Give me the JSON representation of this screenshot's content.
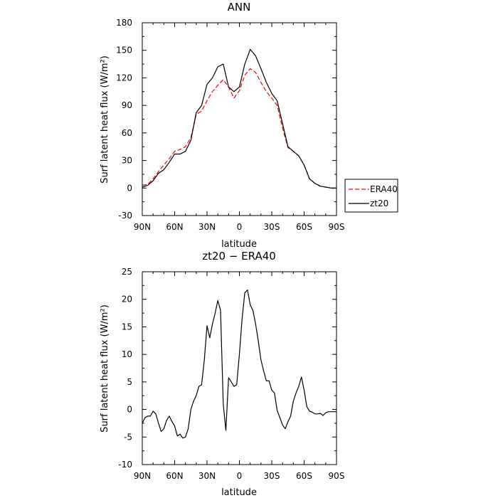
{
  "chart_data": [
    {
      "type": "line",
      "title": "ANN",
      "xlabel": "latitude",
      "ylabel": "Surf latent heat flux (W/m²)",
      "xlim": [
        90,
        -90
      ],
      "ylim": [
        -30,
        180
      ],
      "xticks": [
        90,
        60,
        30,
        0,
        -30,
        -60,
        -90
      ],
      "xtick_labels": [
        "90N",
        "60N",
        "30N",
        "0",
        "30S",
        "60S",
        "90S"
      ],
      "yticks": [
        -30,
        0,
        30,
        60,
        90,
        120,
        150,
        180
      ],
      "ytick_labels": [
        "-30",
        "0",
        "30",
        "60",
        "90",
        "120",
        "150",
        "180"
      ],
      "grid": false,
      "legend_position": "outside-right",
      "series": [
        {
          "name": "ERA40",
          "color": "#ff0000",
          "dash": "dashed",
          "x": [
            90,
            85,
            80,
            75,
            70,
            65,
            60,
            55,
            50,
            45,
            40,
            35,
            30,
            25,
            20,
            15,
            10,
            5,
            0,
            -5,
            -10,
            -15,
            -20,
            -25,
            -30,
            -35,
            -40,
            -45,
            -50,
            -55,
            -60,
            -65,
            -70,
            -75,
            -80,
            -85,
            -90
          ],
          "y": [
            3,
            4,
            10,
            18,
            25,
            32,
            40,
            42,
            45,
            55,
            80,
            84,
            95,
            105,
            112,
            118,
            110,
            98,
            106,
            123,
            130,
            126,
            115,
            105,
            98,
            90,
            65,
            44,
            40,
            35,
            25,
            10,
            5,
            2,
            1,
            0,
            -1
          ]
        },
        {
          "name": "zt20",
          "color": "#000000",
          "dash": "solid",
          "x": [
            90,
            85,
            80,
            75,
            70,
            65,
            60,
            55,
            50,
            45,
            40,
            35,
            30,
            25,
            20,
            15,
            10,
            5,
            0,
            -5,
            -10,
            -15,
            -20,
            -25,
            -30,
            -35,
            -40,
            -45,
            -50,
            -55,
            -60,
            -65,
            -70,
            -75,
            -80,
            -85,
            -90
          ],
          "y": [
            1,
            3,
            8,
            16,
            20,
            28,
            37,
            37,
            40,
            52,
            82,
            90,
            113,
            120,
            132,
            135,
            110,
            105,
            110,
            135,
            151,
            144,
            130,
            115,
            103,
            95,
            70,
            45,
            40,
            35,
            25,
            10,
            5,
            2,
            1,
            0,
            0
          ]
        }
      ]
    },
    {
      "type": "line",
      "title": "zt20 − ERA40",
      "xlabel": "latitude",
      "ylabel": "Surf latent heat flux (W/m²)",
      "xlim": [
        90,
        -90
      ],
      "ylim": [
        -10,
        25
      ],
      "xticks": [
        90,
        60,
        30,
        0,
        -30,
        -60,
        -90
      ],
      "xtick_labels": [
        "90N",
        "60N",
        "30N",
        "0",
        "30S",
        "60S",
        "90S"
      ],
      "yticks": [
        -10,
        -5,
        0,
        5,
        10,
        15,
        20,
        25
      ],
      "ytick_labels": [
        "-10",
        "-5",
        "0",
        "5",
        "10",
        "15",
        "20",
        "25"
      ],
      "grid": false,
      "series": [
        {
          "color": "#000000",
          "dash": "solid",
          "x": [
            90,
            87.5,
            85,
            82.5,
            80,
            77.5,
            75,
            72.5,
            70,
            67.5,
            65,
            62.5,
            60,
            57.5,
            55,
            52.5,
            50,
            47.5,
            45,
            42.5,
            40,
            37.5,
            35,
            32.5,
            30,
            27.5,
            25,
            22.5,
            20,
            17.5,
            15,
            12.5,
            10,
            7.5,
            5,
            2.5,
            0,
            -2.5,
            -5,
            -7.5,
            -10,
            -12.5,
            -15,
            -17.5,
            -20,
            -22.5,
            -25,
            -27.5,
            -30,
            -32.5,
            -35,
            -37.5,
            -40,
            -42.5,
            -45,
            -47.5,
            -50,
            -52.5,
            -55,
            -57.5,
            -60,
            -62.5,
            -65,
            -67.5,
            -70,
            -72.5,
            -75,
            -77.5,
            -80,
            -82.5,
            -85,
            -87.5,
            -90
          ],
          "y": [
            -2.5,
            -1.5,
            -1.2,
            -1.2,
            -0.3,
            -0.8,
            -2.5,
            -4,
            -3.5,
            -2,
            -1.2,
            -2.2,
            -3,
            -4.8,
            -4.5,
            -5.2,
            -5,
            -3.5,
            0,
            1.5,
            2.5,
            4.2,
            4.5,
            9,
            15.2,
            13,
            15.5,
            17.5,
            19.8,
            18,
            1,
            -3.8,
            5.8,
            5,
            4.2,
            4.5,
            10,
            16.5,
            21.2,
            21.7,
            19,
            18,
            15.5,
            12.5,
            9,
            7,
            5.2,
            5.2,
            3.5,
            3,
            -0.2,
            -1.5,
            -2.8,
            -3.5,
            -2.2,
            -1.2,
            1.5,
            3,
            4.2,
            5.9,
            3.5,
            0.5,
            -0.3,
            -0.5,
            -0.8,
            -0.8,
            -0.7,
            -1.1,
            -0.6,
            -0.4,
            -0.4,
            -0.4,
            -0.4
          ]
        }
      ]
    }
  ]
}
